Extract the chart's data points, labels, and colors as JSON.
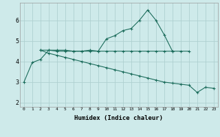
{
  "xlabel": "Humidex (Indice chaleur)",
  "bg_color": "#ceeaea",
  "grid_color": "#aed0d0",
  "line_color": "#1a6b5a",
  "xlim": [
    -0.5,
    23.5
  ],
  "ylim": [
    1.8,
    6.85
  ],
  "xticks": [
    0,
    1,
    2,
    3,
    4,
    5,
    6,
    7,
    8,
    9,
    10,
    11,
    12,
    13,
    14,
    15,
    16,
    17,
    18,
    19,
    20,
    21,
    22,
    23
  ],
  "yticks": [
    2,
    3,
    4,
    5,
    6
  ],
  "line1_x": [
    0,
    1,
    2,
    3,
    4,
    5,
    6,
    7,
    8,
    9,
    10,
    11,
    12,
    13,
    14,
    15,
    16,
    17,
    18
  ],
  "line1_y": [
    3.0,
    3.95,
    4.1,
    4.55,
    4.55,
    4.55,
    4.5,
    4.5,
    4.55,
    4.5,
    5.1,
    5.25,
    5.5,
    5.6,
    6.0,
    6.5,
    6.0,
    5.3,
    4.5
  ],
  "line2_x": [
    2,
    3,
    4,
    5,
    6,
    7,
    8,
    9,
    10,
    11,
    12,
    13,
    14,
    15,
    16,
    17,
    18,
    19,
    20
  ],
  "line2_y": [
    4.55,
    4.55,
    4.5,
    4.5,
    4.5,
    4.5,
    4.5,
    4.5,
    4.5,
    4.5,
    4.5,
    4.5,
    4.5,
    4.5,
    4.5,
    4.5,
    4.5,
    4.5,
    4.5
  ],
  "line3_x": [
    2,
    3,
    4,
    5,
    6,
    7,
    8,
    9,
    10,
    11,
    12,
    13,
    14,
    15,
    16,
    17,
    18,
    19,
    20,
    21,
    22,
    23
  ],
  "line3_y": [
    4.55,
    4.4,
    4.3,
    4.2,
    4.1,
    4.0,
    3.9,
    3.8,
    3.7,
    3.6,
    3.5,
    3.4,
    3.3,
    3.2,
    3.1,
    3.0,
    2.95,
    2.9,
    2.85,
    2.5,
    2.75,
    2.7
  ]
}
